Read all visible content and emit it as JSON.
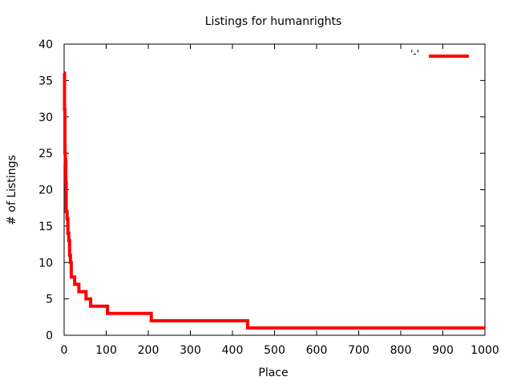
{
  "chart_data": {
    "type": "line",
    "title": "Listings for humanrights",
    "xlabel": "Place",
    "ylabel": "# of Listings",
    "xlim": [
      0,
      1000
    ],
    "ylim": [
      0,
      40
    ],
    "xticks": [
      0,
      100,
      200,
      300,
      400,
      500,
      600,
      700,
      800,
      900,
      1000
    ],
    "yticks": [
      0,
      5,
      10,
      15,
      20,
      25,
      30,
      35,
      40
    ],
    "grid": false,
    "legend": {
      "position": "top-right",
      "entries": [
        {
          "label": "'-'",
          "color": "#ff0000"
        }
      ]
    },
    "series": [
      {
        "color": "#ff0000",
        "step": true,
        "points": [
          [
            0,
            36
          ],
          [
            1,
            36
          ],
          [
            1,
            31
          ],
          [
            2,
            31
          ],
          [
            2,
            25
          ],
          [
            3,
            25
          ],
          [
            3,
            24
          ],
          [
            4,
            24
          ],
          [
            4,
            21
          ],
          [
            5,
            21
          ],
          [
            5,
            17
          ],
          [
            7,
            17
          ],
          [
            7,
            16
          ],
          [
            9,
            16
          ],
          [
            9,
            14
          ],
          [
            11,
            14
          ],
          [
            11,
            13
          ],
          [
            13,
            13
          ],
          [
            13,
            11
          ],
          [
            15,
            11
          ],
          [
            15,
            10
          ],
          [
            17,
            10
          ],
          [
            17,
            8
          ],
          [
            25,
            8
          ],
          [
            25,
            7
          ],
          [
            35,
            7
          ],
          [
            35,
            6
          ],
          [
            52,
            6
          ],
          [
            52,
            5
          ],
          [
            63,
            5
          ],
          [
            63,
            4
          ],
          [
            103,
            4
          ],
          [
            103,
            3
          ],
          [
            207,
            3
          ],
          [
            207,
            2
          ],
          [
            436,
            2
          ],
          [
            436,
            1
          ],
          [
            1000,
            1
          ]
        ]
      }
    ]
  }
}
